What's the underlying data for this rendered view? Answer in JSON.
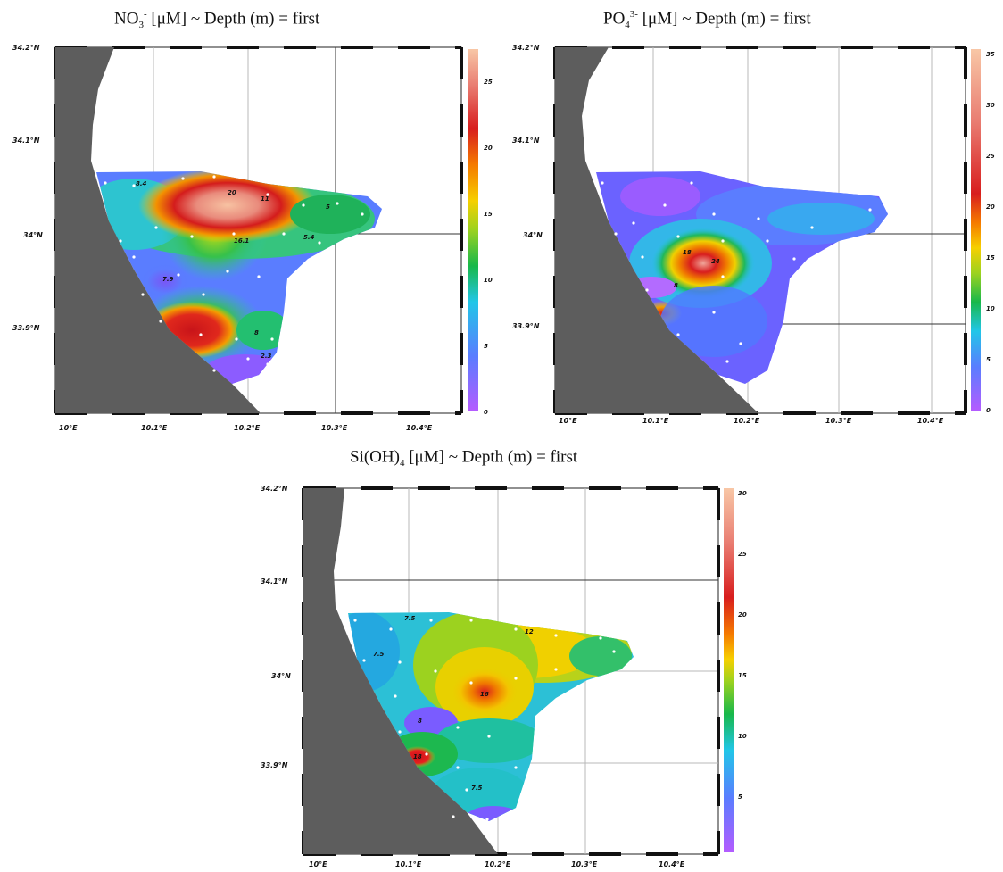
{
  "panels": [
    {
      "id": "no3",
      "title": {
        "main": "NO",
        "sub": "3",
        "sup": "-",
        "rest": " [μM] ~ Depth (m) = first"
      },
      "lat_labels": [
        "34.2°N",
        "34.1°N",
        "34°N",
        "33.9°N"
      ],
      "lon_labels": [
        "10°E",
        "10.1°E",
        "10.2°E",
        "10.3°E",
        "10.4°E"
      ],
      "colorbar": {
        "min": 0,
        "max": 27,
        "ticks": [
          "25",
          "20",
          "15",
          "10",
          "5",
          "0"
        ]
      },
      "contour_labels": [
        "20",
        "16.1",
        "11",
        "5",
        "8.4",
        "7.9",
        "8",
        "2.3",
        "5.4"
      ]
    },
    {
      "id": "po4",
      "title": {
        "main": "PO",
        "sub": "4",
        "sup": "3-",
        "rest": " [μM] ~ Depth (m) = first"
      },
      "lat_labels": [
        "34.2°N",
        "34.1°N",
        "34°N",
        "33.9°N"
      ],
      "lon_labels": [
        "10°E",
        "10.1°E",
        "10.2°E",
        "10.3°E",
        "10.4°E"
      ],
      "colorbar": {
        "min": 0,
        "max": 36,
        "ticks": [
          "35",
          "30",
          "25",
          "20",
          "15",
          "10",
          "5",
          "0"
        ]
      },
      "contour_labels": [
        "18",
        "24",
        "8"
      ]
    },
    {
      "id": "sioh4",
      "title": {
        "main": "Si(OH)",
        "sub": "4",
        "sup": "",
        "rest": " [μM] ~ Depth (m) = first"
      },
      "lat_labels": [
        "34.2°N",
        "34.1°N",
        "34°N",
        "33.9°N"
      ],
      "lon_labels": [
        "10°E",
        "10.1°E",
        "10.2°E",
        "10.3°E",
        "10.4°E"
      ],
      "colorbar": {
        "min": 0,
        "max": 30,
        "ticks": [
          "30",
          "25",
          "20",
          "15",
          "10",
          "5"
        ]
      },
      "contour_labels": [
        "7.5",
        "12",
        "16",
        "8",
        "18",
        "7.5",
        "7.5"
      ]
    }
  ],
  "colors": {
    "land": "#5d5d5d",
    "grid": "#b8b8b8",
    "frame": "#222222"
  }
}
